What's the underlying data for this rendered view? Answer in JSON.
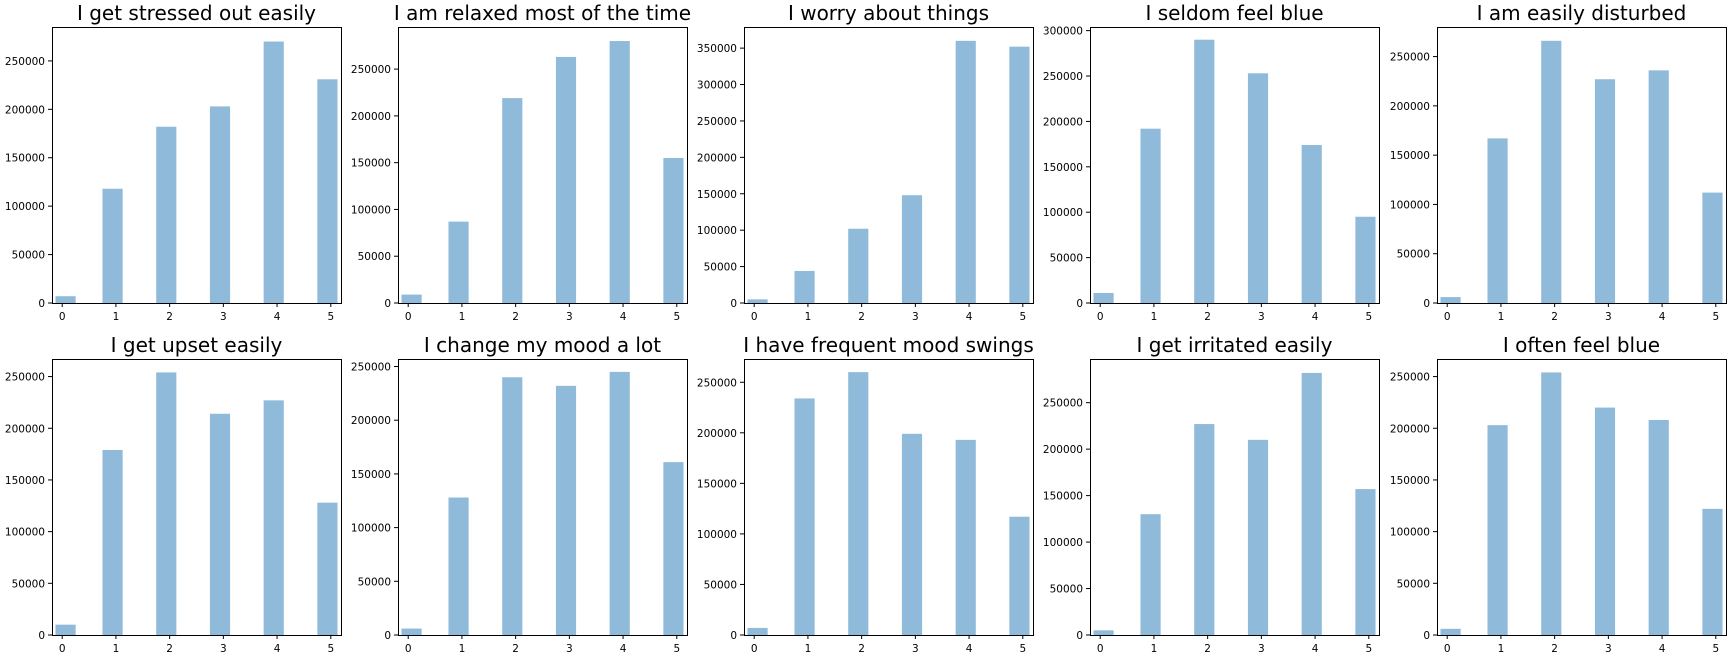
{
  "chart_data": [
    {
      "type": "bar",
      "title": "I get stressed out easily",
      "categories": [
        "0",
        "1",
        "2",
        "3",
        "4",
        "5"
      ],
      "values": [
        7000,
        118000,
        182000,
        203000,
        270000,
        231000
      ],
      "ylim": [
        0,
        285000
      ],
      "yticks": [
        "0",
        "50000",
        "100000",
        "150000",
        "200000",
        "250000"
      ],
      "bar_color": "#8fbad9"
    },
    {
      "type": "bar",
      "title": "I am relaxed most of the time",
      "categories": [
        "0",
        "1",
        "2",
        "3",
        "4",
        "5"
      ],
      "values": [
        9000,
        87000,
        219000,
        263000,
        280000,
        155000
      ],
      "ylim": [
        0,
        295000
      ],
      "yticks": [
        "0",
        "50000",
        "100000",
        "150000",
        "200000",
        "250000"
      ],
      "bar_color": "#8fbad9"
    },
    {
      "type": "bar",
      "title": "I worry about things",
      "categories": [
        "0",
        "1",
        "2",
        "3",
        "4",
        "5"
      ],
      "values": [
        5000,
        44000,
        102000,
        148000,
        360000,
        352000
      ],
      "ylim": [
        0,
        379000
      ],
      "yticks": [
        "0",
        "50000",
        "100000",
        "150000",
        "200000",
        "250000",
        "300000",
        "350000"
      ],
      "bar_color": "#8fbad9"
    },
    {
      "type": "bar",
      "title": "I seldom feel blue",
      "categories": [
        "0",
        "1",
        "2",
        "3",
        "4",
        "5"
      ],
      "values": [
        11000,
        192000,
        290000,
        253000,
        174000,
        95000
      ],
      "ylim": [
        0,
        304000
      ],
      "yticks": [
        "0",
        "50000",
        "100000",
        "150000",
        "200000",
        "250000",
        "300000"
      ],
      "bar_color": "#8fbad9"
    },
    {
      "type": "bar",
      "title": "I am easily disturbed",
      "categories": [
        "0",
        "1",
        "2",
        "3",
        "4",
        "5"
      ],
      "values": [
        6000,
        167000,
        266000,
        227000,
        236000,
        112000
      ],
      "ylim": [
        0,
        280000
      ],
      "yticks": [
        "0",
        "50000",
        "100000",
        "150000",
        "200000",
        "250000"
      ],
      "bar_color": "#8fbad9"
    },
    {
      "type": "bar",
      "title": "I get upset easily",
      "categories": [
        "0",
        "1",
        "2",
        "3",
        "4",
        "5"
      ],
      "values": [
        10000,
        179000,
        254000,
        214000,
        227000,
        128000
      ],
      "ylim": [
        0,
        267000
      ],
      "yticks": [
        "0",
        "50000",
        "100000",
        "150000",
        "200000",
        "250000"
      ],
      "bar_color": "#8fbad9"
    },
    {
      "type": "bar",
      "title": "I change my mood a lot",
      "categories": [
        "0",
        "1",
        "2",
        "3",
        "4",
        "5"
      ],
      "values": [
        6000,
        128000,
        240000,
        232000,
        245000,
        161000
      ],
      "ylim": [
        0,
        257000
      ],
      "yticks": [
        "0",
        "50000",
        "100000",
        "150000",
        "200000",
        "250000"
      ],
      "bar_color": "#8fbad9"
    },
    {
      "type": "bar",
      "title": "I have frequent mood swings",
      "categories": [
        "0",
        "1",
        "2",
        "3",
        "4",
        "5"
      ],
      "values": [
        7000,
        234000,
        260000,
        199000,
        193000,
        117000
      ],
      "ylim": [
        0,
        273000
      ],
      "yticks": [
        "0",
        "50000",
        "100000",
        "150000",
        "200000",
        "250000"
      ],
      "bar_color": "#8fbad9"
    },
    {
      "type": "bar",
      "title": "I get irritated easily",
      "categories": [
        "0",
        "1",
        "2",
        "3",
        "4",
        "5"
      ],
      "values": [
        5000,
        130000,
        227000,
        210000,
        282000,
        157000
      ],
      "ylim": [
        0,
        297000
      ],
      "yticks": [
        "0",
        "50000",
        "100000",
        "150000",
        "200000",
        "250000"
      ],
      "bar_color": "#8fbad9"
    },
    {
      "type": "bar",
      "title": "I often feel blue",
      "categories": [
        "0",
        "1",
        "2",
        "3",
        "4",
        "5"
      ],
      "values": [
        6000,
        203000,
        254000,
        220000,
        208000,
        122000
      ],
      "ylim": [
        0,
        267000
      ],
      "yticks": [
        "0",
        "50000",
        "100000",
        "150000",
        "200000",
        "250000"
      ],
      "bar_color": "#8fbad9"
    }
  ]
}
